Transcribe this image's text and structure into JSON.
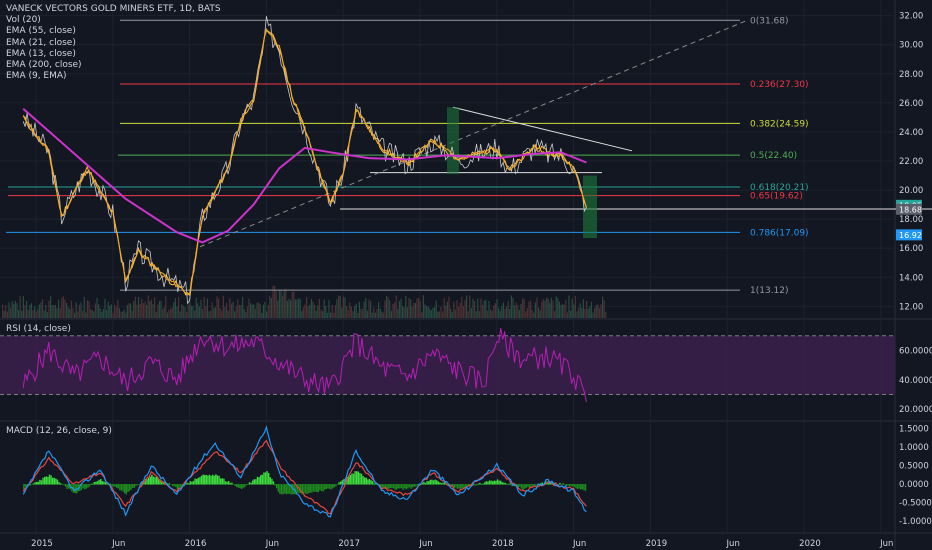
{
  "header": {
    "title": "VANECK VECTORS GOLD MINERS ETF, 1D, BATS",
    "indicators": [
      "Vol (20)",
      "EMA (55, close)",
      "EMA (21, close)",
      "EMA (13, close)",
      "EMA (200, close)",
      "EMA (9, EMA)"
    ]
  },
  "rsi_title": "RSI (14, close)",
  "macd_title": "MACD (12, 26, close, 9)",
  "colors": {
    "background": "#131722",
    "price": "#c8c8c8",
    "ema9": "#f5a623",
    "ema13": "#f7c04a",
    "ema200": "#cc33cc",
    "rsi": "#b51fb5",
    "rsi_band": "#3a1f4a",
    "macd": "#2196f3",
    "signal": "#e8453c",
    "hist_pos": "#3ddc3d",
    "hist_neg": "#1f8a1f"
  },
  "chart_data": [
    {
      "type": "line",
      "title": "VANECK VECTORS GOLD MINERS ETF, 1D, BATS",
      "x_ticks": [
        "2015",
        "Jun",
        "2016",
        "Jun",
        "2017",
        "Jun",
        "2018",
        "Jun",
        "2019",
        "Jun",
        "2020",
        "Jun"
      ],
      "y_ticks": [
        "12.00",
        "14.00",
        "16.00",
        "18.00",
        "20.00",
        "22.00",
        "24.00",
        "26.00",
        "28.00",
        "30.00",
        "32.00"
      ],
      "ylim": [
        11.2,
        32.8
      ],
      "series": [
        {
          "name": "Price",
          "x": [
            "2014-12",
            "2015-02",
            "2015-03",
            "2015-05",
            "2015-07",
            "2015-08",
            "2015-09",
            "2015-11",
            "2016-01",
            "2016-02",
            "2016-04",
            "2016-05",
            "2016-06",
            "2016-07",
            "2016-08",
            "2016-09",
            "2016-10",
            "2016-12",
            "2017-01",
            "2017-02",
            "2017-04",
            "2017-06",
            "2017-08",
            "2017-09",
            "2017-10",
            "2018-01",
            "2018-02",
            "2018-04",
            "2018-05",
            "2018-06",
            "2018-07",
            "2018-08"
          ],
          "values": [
            25.0,
            22.6,
            18.2,
            21.5,
            18.4,
            13.8,
            15.8,
            14.1,
            12.8,
            18.2,
            21.5,
            24.8,
            26.2,
            31.2,
            29.8,
            26.5,
            24.2,
            19.0,
            21.2,
            25.6,
            22.9,
            21.8,
            23.4,
            22.8,
            22.1,
            22.9,
            21.4,
            23.0,
            22.5,
            22.4,
            21.5,
            18.8
          ]
        },
        {
          "name": "EMA 200",
          "x": [
            "2014-12",
            "2015-04",
            "2015-08",
            "2015-12",
            "2016-02",
            "2016-04",
            "2016-06",
            "2016-08",
            "2016-10",
            "2016-12",
            "2017-03",
            "2017-06",
            "2017-09",
            "2018-01",
            "2018-04",
            "2018-06",
            "2018-08"
          ],
          "values": [
            25.6,
            22.5,
            19.4,
            17.1,
            16.4,
            17.2,
            19.0,
            21.5,
            22.9,
            22.6,
            22.2,
            22.1,
            22.4,
            22.2,
            22.5,
            22.6,
            21.9
          ]
        }
      ],
      "fib_levels": [
        {
          "label": "0(31.68)",
          "value": 31.68,
          "color": "#9598a1"
        },
        {
          "label": "0.236(27.30)",
          "value": 27.3,
          "color": "#f23645"
        },
        {
          "label": "0.382(24.59)",
          "value": 24.59,
          "color": "#cddc39"
        },
        {
          "label": "0.5(22.40)",
          "value": 22.4,
          "color": "#4caf50"
        },
        {
          "label": "0.618(20.21)",
          "value": 20.21,
          "color": "#26a69a"
        },
        {
          "label": "0.65(19.62)",
          "value": 19.62,
          "color": "#f23645"
        },
        {
          "label": "0.786(17.09)",
          "value": 17.09,
          "color": "#2196f3"
        },
        {
          "label": "1(13.12)",
          "value": 13.12,
          "color": "#9598a1"
        }
      ],
      "price_tags": [
        {
          "label": "18.95",
          "value": 18.95,
          "color": "#26a69a"
        },
        {
          "label": "18.68",
          "value": 18.68,
          "color": "#5a5f6b"
        },
        {
          "label": "16.92",
          "value": 16.92,
          "color": "#2196f3"
        }
      ]
    },
    {
      "type": "line",
      "title": "RSI (14, close)",
      "y_ticks": [
        "20.0000",
        "40.0000",
        "60.0000"
      ],
      "ylim": [
        12,
        80
      ],
      "band": [
        30,
        70
      ],
      "series": [
        {
          "name": "RSI",
          "x": [
            "2014-12",
            "2015-02",
            "2015-04",
            "2015-06",
            "2015-08",
            "2015-10",
            "2015-12",
            "2016-02",
            "2016-04",
            "2016-06",
            "2016-08",
            "2016-10",
            "2016-12",
            "2017-02",
            "2017-04",
            "2017-06",
            "2017-08",
            "2017-10",
            "2017-12",
            "2018-01",
            "2018-03",
            "2018-05",
            "2018-07",
            "2018-08"
          ],
          "values": [
            36,
            60,
            42,
            55,
            38,
            52,
            40,
            70,
            62,
            66,
            52,
            40,
            34,
            66,
            48,
            42,
            58,
            46,
            38,
            70,
            54,
            56,
            44,
            25
          ]
        }
      ]
    },
    {
      "type": "line",
      "title": "MACD (12, 26, close, 9)",
      "y_ticks": [
        "-1.0000",
        "-0.5000",
        "0.0000",
        "0.5000",
        "1.0000",
        "1.5000"
      ],
      "ylim": [
        -1.35,
        1.65
      ],
      "series": [
        {
          "name": "MACD",
          "x": [
            "2014-12",
            "2015-02",
            "2015-04",
            "2015-06",
            "2015-08",
            "2015-10",
            "2015-12",
            "2016-02",
            "2016-03",
            "2016-05",
            "2016-07",
            "2016-08",
            "2016-10",
            "2016-12",
            "2017-02",
            "2017-04",
            "2017-06",
            "2017-08",
            "2017-10",
            "2018-01",
            "2018-03",
            "2018-05",
            "2018-07",
            "2018-08"
          ],
          "values": [
            -0.3,
            0.9,
            -0.2,
            0.4,
            -0.8,
            0.5,
            -0.3,
            0.7,
            1.1,
            0.2,
            1.5,
            0.3,
            -0.5,
            -0.9,
            0.9,
            -0.2,
            -0.4,
            0.4,
            -0.3,
            0.5,
            -0.3,
            0.1,
            -0.2,
            -0.75
          ]
        },
        {
          "name": "Signal",
          "x": [
            "2014-12",
            "2015-02",
            "2015-04",
            "2015-06",
            "2015-08",
            "2015-10",
            "2015-12",
            "2016-02",
            "2016-03",
            "2016-05",
            "2016-07",
            "2016-08",
            "2016-10",
            "2016-12",
            "2017-02",
            "2017-04",
            "2017-06",
            "2017-08",
            "2017-10",
            "2018-01",
            "2018-03",
            "2018-05",
            "2018-07",
            "2018-08"
          ],
          "values": [
            -0.2,
            0.7,
            0.0,
            0.3,
            -0.6,
            0.3,
            -0.2,
            0.5,
            0.9,
            0.3,
            1.2,
            0.5,
            -0.3,
            -0.8,
            0.6,
            -0.1,
            -0.3,
            0.3,
            -0.2,
            0.4,
            -0.2,
            0.05,
            -0.15,
            -0.6
          ]
        }
      ]
    }
  ]
}
